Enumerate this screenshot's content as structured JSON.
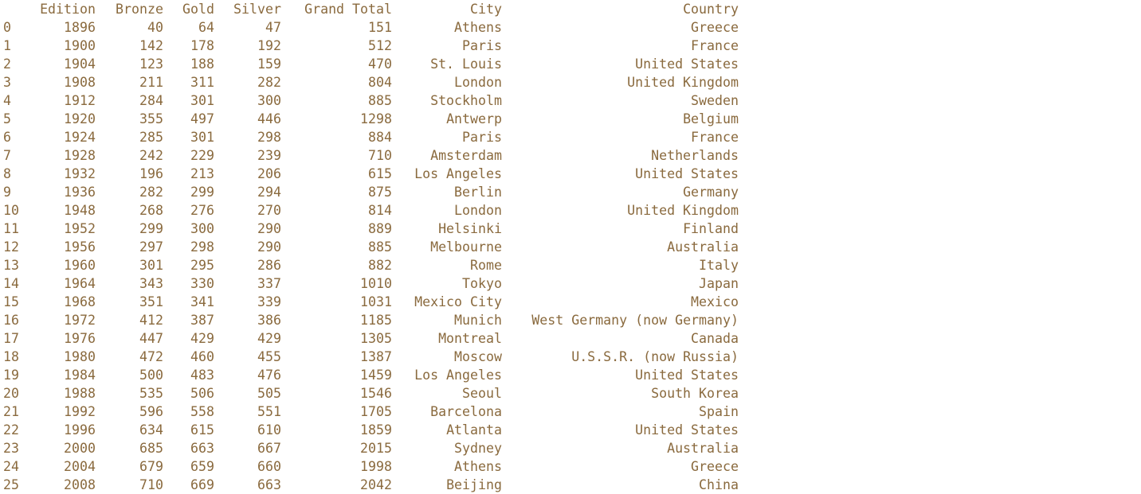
{
  "table": {
    "columns": [
      "Edition",
      "Bronze",
      "Gold",
      "Silver",
      "Grand Total",
      "City",
      "Country"
    ],
    "rows": [
      {
        "index": "0",
        "edition": "1896",
        "bronze": "40",
        "gold": "64",
        "silver": "47",
        "total": "151",
        "city": "Athens",
        "country": "Greece"
      },
      {
        "index": "1",
        "edition": "1900",
        "bronze": "142",
        "gold": "178",
        "silver": "192",
        "total": "512",
        "city": "Paris",
        "country": "France"
      },
      {
        "index": "2",
        "edition": "1904",
        "bronze": "123",
        "gold": "188",
        "silver": "159",
        "total": "470",
        "city": "St. Louis",
        "country": "United States"
      },
      {
        "index": "3",
        "edition": "1908",
        "bronze": "211",
        "gold": "311",
        "silver": "282",
        "total": "804",
        "city": "London",
        "country": "United Kingdom"
      },
      {
        "index": "4",
        "edition": "1912",
        "bronze": "284",
        "gold": "301",
        "silver": "300",
        "total": "885",
        "city": "Stockholm",
        "country": "Sweden"
      },
      {
        "index": "5",
        "edition": "1920",
        "bronze": "355",
        "gold": "497",
        "silver": "446",
        "total": "1298",
        "city": "Antwerp",
        "country": "Belgium"
      },
      {
        "index": "6",
        "edition": "1924",
        "bronze": "285",
        "gold": "301",
        "silver": "298",
        "total": "884",
        "city": "Paris",
        "country": "France"
      },
      {
        "index": "7",
        "edition": "1928",
        "bronze": "242",
        "gold": "229",
        "silver": "239",
        "total": "710",
        "city": "Amsterdam",
        "country": "Netherlands"
      },
      {
        "index": "8",
        "edition": "1932",
        "bronze": "196",
        "gold": "213",
        "silver": "206",
        "total": "615",
        "city": "Los Angeles",
        "country": "United States"
      },
      {
        "index": "9",
        "edition": "1936",
        "bronze": "282",
        "gold": "299",
        "silver": "294",
        "total": "875",
        "city": "Berlin",
        "country": "Germany"
      },
      {
        "index": "10",
        "edition": "1948",
        "bronze": "268",
        "gold": "276",
        "silver": "270",
        "total": "814",
        "city": "London",
        "country": "United Kingdom"
      },
      {
        "index": "11",
        "edition": "1952",
        "bronze": "299",
        "gold": "300",
        "silver": "290",
        "total": "889",
        "city": "Helsinki",
        "country": "Finland"
      },
      {
        "index": "12",
        "edition": "1956",
        "bronze": "297",
        "gold": "298",
        "silver": "290",
        "total": "885",
        "city": "Melbourne",
        "country": "Australia"
      },
      {
        "index": "13",
        "edition": "1960",
        "bronze": "301",
        "gold": "295",
        "silver": "286",
        "total": "882",
        "city": "Rome",
        "country": "Italy"
      },
      {
        "index": "14",
        "edition": "1964",
        "bronze": "343",
        "gold": "330",
        "silver": "337",
        "total": "1010",
        "city": "Tokyo",
        "country": "Japan"
      },
      {
        "index": "15",
        "edition": "1968",
        "bronze": "351",
        "gold": "341",
        "silver": "339",
        "total": "1031",
        "city": "Mexico City",
        "country": "Mexico"
      },
      {
        "index": "16",
        "edition": "1972",
        "bronze": "412",
        "gold": "387",
        "silver": "386",
        "total": "1185",
        "city": "Munich",
        "country": "West Germany (now Germany)"
      },
      {
        "index": "17",
        "edition": "1976",
        "bronze": "447",
        "gold": "429",
        "silver": "429",
        "total": "1305",
        "city": "Montreal",
        "country": "Canada"
      },
      {
        "index": "18",
        "edition": "1980",
        "bronze": "472",
        "gold": "460",
        "silver": "455",
        "total": "1387",
        "city": "Moscow",
        "country": "U.S.S.R. (now Russia)"
      },
      {
        "index": "19",
        "edition": "1984",
        "bronze": "500",
        "gold": "483",
        "silver": "476",
        "total": "1459",
        "city": "Los Angeles",
        "country": "United States"
      },
      {
        "index": "20",
        "edition": "1988",
        "bronze": "535",
        "gold": "506",
        "silver": "505",
        "total": "1546",
        "city": "Seoul",
        "country": "South Korea"
      },
      {
        "index": "21",
        "edition": "1992",
        "bronze": "596",
        "gold": "558",
        "silver": "551",
        "total": "1705",
        "city": "Barcelona",
        "country": "Spain"
      },
      {
        "index": "22",
        "edition": "1996",
        "bronze": "634",
        "gold": "615",
        "silver": "610",
        "total": "1859",
        "city": "Atlanta",
        "country": "United States"
      },
      {
        "index": "23",
        "edition": "2000",
        "bronze": "685",
        "gold": "663",
        "silver": "667",
        "total": "2015",
        "city": "Sydney",
        "country": "Australia"
      },
      {
        "index": "24",
        "edition": "2004",
        "bronze": "679",
        "gold": "659",
        "silver": "660",
        "total": "1998",
        "city": "Athens",
        "country": "Greece"
      },
      {
        "index": "25",
        "edition": "2008",
        "bronze": "710",
        "gold": "669",
        "silver": "663",
        "total": "2042",
        "city": "Beijing",
        "country": "China"
      }
    ]
  },
  "colors": {
    "text": "#8a6a3e",
    "background": "#ffffff"
  }
}
